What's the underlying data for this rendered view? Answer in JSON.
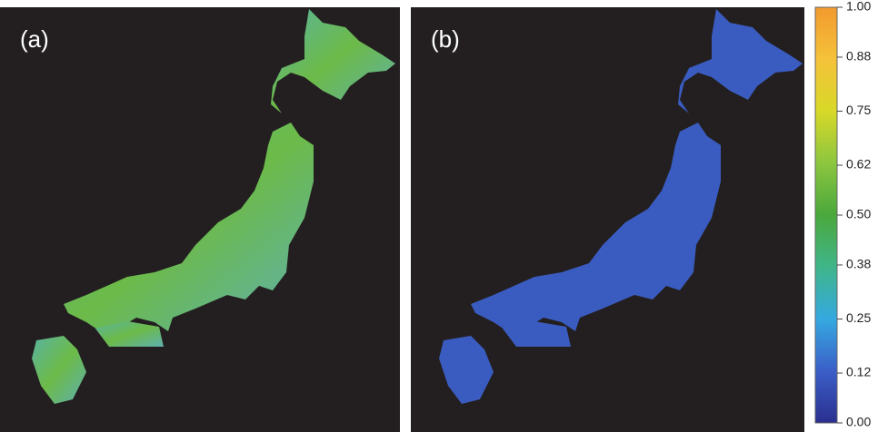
{
  "panels": [
    {
      "label": "(a)"
    },
    {
      "label": "(b)"
    }
  ],
  "colorbar": {
    "lim": [
      0,
      1
    ],
    "ticks": [
      {
        "value": 0,
        "label": "0.00"
      },
      {
        "value": 0.12,
        "label": "0.12"
      },
      {
        "value": 0.25,
        "label": "0.25"
      },
      {
        "value": 0.38,
        "label": "0.38"
      },
      {
        "value": 0.5,
        "label": "0.50"
      },
      {
        "value": 0.62,
        "label": "0.62"
      },
      {
        "value": 0.75,
        "label": "0.75"
      },
      {
        "value": 0.88,
        "label": "0.88"
      },
      {
        "value": 1,
        "label": "1.00"
      }
    ],
    "colors": [
      "#2a2f8f",
      "#3b5fc8",
      "#35a9e0",
      "#3fb58a",
      "#4aa83c",
      "#8cc63f",
      "#d8d828",
      "#f5c23a",
      "#f29a2e"
    ]
  }
}
